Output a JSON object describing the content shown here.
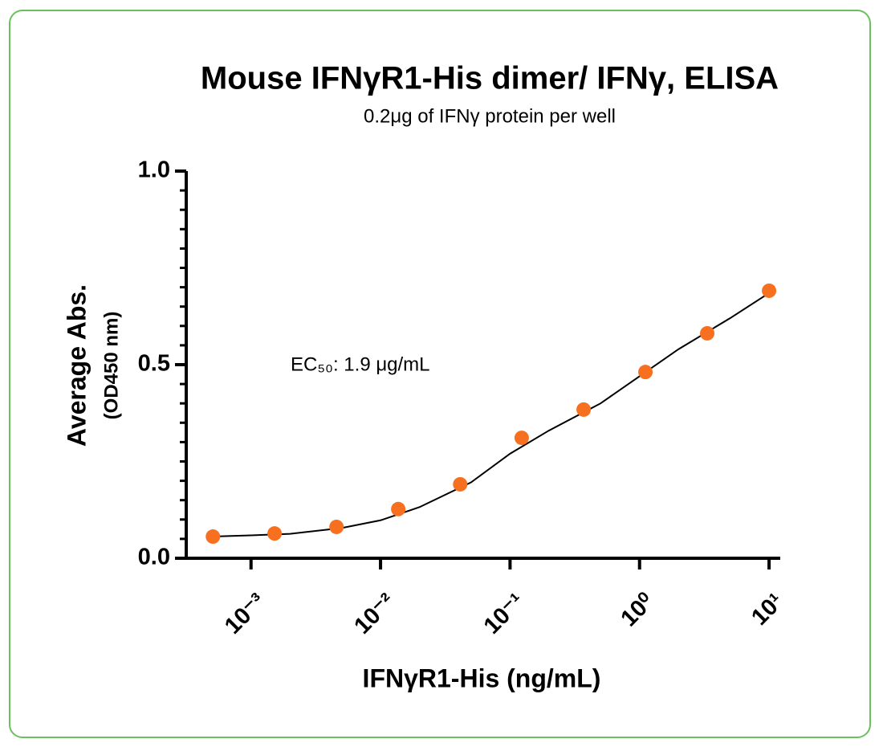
{
  "chart_data": {
    "type": "scatter",
    "title": "Mouse IFNγR1-His dimer/ IFNγ, ELISA",
    "subtitle": "0.2μg of IFNγ protein per well",
    "x_label": "IFNγR1-His (ng/mL)",
    "y_label": [
      "Average Abs.",
      "(OD450 nm)"
    ],
    "annotation": "EC₅₀: 1.9 μg/mL",
    "x_scale": "log",
    "xlim": [
      0.000316,
      12.2
    ],
    "xticks": [
      {
        "value": 0.001,
        "label": "10⁻³"
      },
      {
        "value": 0.01,
        "label": "10⁻²"
      },
      {
        "value": 0.1,
        "label": "10⁻¹"
      },
      {
        "value": 1,
        "label": "10⁰"
      },
      {
        "value": 10,
        "label": "10¹"
      }
    ],
    "ylim": [
      0,
      1.0
    ],
    "yticks": [
      {
        "value": 0,
        "label": "0.0"
      },
      {
        "value": 0.5,
        "label": "0.5"
      },
      {
        "value": 1.0,
        "label": "1.0"
      }
    ],
    "yminorticks": [
      0.05,
      0.1,
      0.15,
      0.2,
      0.25,
      0.3,
      0.35,
      0.4,
      0.45,
      0.55,
      0.6,
      0.65,
      0.7,
      0.75,
      0.8,
      0.85,
      0.9,
      0.95
    ],
    "series": [
      {
        "type": "scatter",
        "color": "#f7701f",
        "x": [
          0.000508,
          0.00152,
          0.00457,
          0.0137,
          0.0412,
          0.123,
          0.37,
          1.11,
          3.33,
          10
        ],
        "values": [
          0.056,
          0.064,
          0.081,
          0.127,
          0.191,
          0.311,
          0.384,
          0.481,
          0.581,
          0.691
        ]
      },
      {
        "type": "line",
        "color": "#000000",
        "x": [
          0.0005,
          0.001,
          0.002,
          0.005,
          0.01,
          0.02,
          0.05,
          0.1,
          0.2,
          0.5,
          1,
          2,
          5,
          10
        ],
        "values": [
          0.056,
          0.059,
          0.063,
          0.078,
          0.098,
          0.132,
          0.196,
          0.27,
          0.33,
          0.4,
          0.47,
          0.54,
          0.62,
          0.685
        ]
      }
    ]
  }
}
